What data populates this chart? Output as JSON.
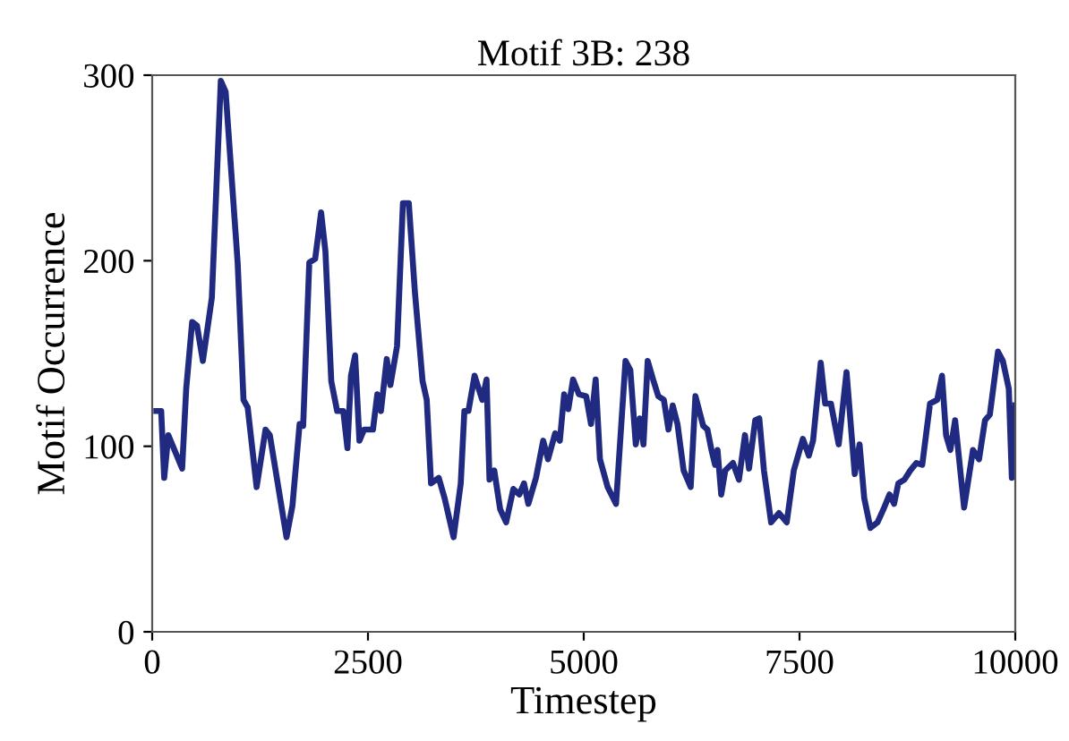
{
  "chart_data": {
    "type": "line",
    "title": "Motif 3B: 238",
    "xlabel": "Timestep",
    "ylabel": "Motif Occurrence",
    "xlim": [
      0,
      10000
    ],
    "xticks": [
      0,
      2500,
      5000,
      7500,
      10000
    ],
    "ylim": [
      0,
      300
    ],
    "yticks": [
      0,
      100,
      200,
      300
    ],
    "grid": false,
    "marker": "none",
    "line_style": "solid",
    "series": [
      {
        "color": "#1f2a80",
        "x": [
          48,
          104,
          139,
          187,
          347,
          394,
          463,
          519,
          587,
          691,
          795,
          851,
          990,
          1058,
          1106,
          1210,
          1313,
          1363,
          1556,
          1625,
          1708,
          1749,
          1820,
          1888,
          1957,
          2007,
          2075,
          2143,
          2214,
          2262,
          2303,
          2351,
          2401,
          2455,
          2558,
          2608,
          2650,
          2718,
          2760,
          2837,
          2905,
          2973,
          3044,
          3133,
          3181,
          3231,
          3320,
          3388,
          3492,
          3575,
          3617,
          3664,
          3735,
          3824,
          3874,
          3908,
          3963,
          4032,
          4101,
          4184,
          4254,
          4308,
          4358,
          4447,
          4530,
          4586,
          4669,
          4723,
          4773,
          4821,
          4876,
          4944,
          5028,
          5084,
          5138,
          5188,
          5277,
          5374,
          5484,
          5540,
          5603,
          5650,
          5692,
          5741,
          5810,
          5864,
          5928,
          5982,
          6031,
          6086,
          6157,
          6239,
          6294,
          6384,
          6433,
          6480,
          6522,
          6550,
          6593,
          6640,
          6729,
          6798,
          6868,
          6915,
          6987,
          7034,
          7088,
          7171,
          7262,
          7352,
          7434,
          7539,
          7608,
          7657,
          7746,
          7797,
          7864,
          7954,
          8045,
          8140,
          8196,
          8250,
          8321,
          8404,
          8472,
          8543,
          8596,
          8645,
          8715,
          8784,
          8854,
          8922,
          9012,
          9095,
          9151,
          9198,
          9248,
          9303,
          9407,
          9510,
          9580,
          9649,
          9705,
          9800,
          9856,
          9925,
          9960,
          10000
        ],
        "values": [
          119,
          119,
          83,
          106,
          88,
          131,
          167,
          165,
          146,
          180,
          297,
          291,
          199,
          125,
          121,
          78,
          109,
          106,
          51,
          68,
          112,
          111,
          199,
          201,
          226,
          205,
          135,
          119,
          119,
          99,
          138,
          149,
          103,
          109,
          109,
          128,
          119,
          147,
          133,
          154,
          231,
          231,
          183,
          135,
          125,
          80,
          83,
          72,
          51,
          80,
          119,
          119,
          138,
          125,
          136,
          82,
          87,
          66,
          59,
          77,
          74,
          80,
          69,
          83,
          103,
          93,
          107,
          103,
          128,
          120,
          136,
          128,
          127,
          112,
          136,
          93,
          78,
          69,
          146,
          141,
          101,
          115,
          101,
          146,
          135,
          127,
          125,
          109,
          122,
          112,
          87,
          78,
          127,
          111,
          109,
          98,
          90,
          98,
          74,
          87,
          91,
          82,
          106,
          88,
          114,
          115,
          87,
          59,
          64,
          59,
          87,
          104,
          95,
          103,
          145,
          123,
          123,
          101,
          140,
          85,
          101,
          72,
          56,
          59,
          66,
          74,
          69,
          80,
          82,
          87,
          91,
          90,
          123,
          125,
          138,
          106,
          98,
          114,
          67,
          98,
          93,
          114,
          117,
          151,
          146,
          131,
          83,
          122
        ]
      }
    ]
  }
}
